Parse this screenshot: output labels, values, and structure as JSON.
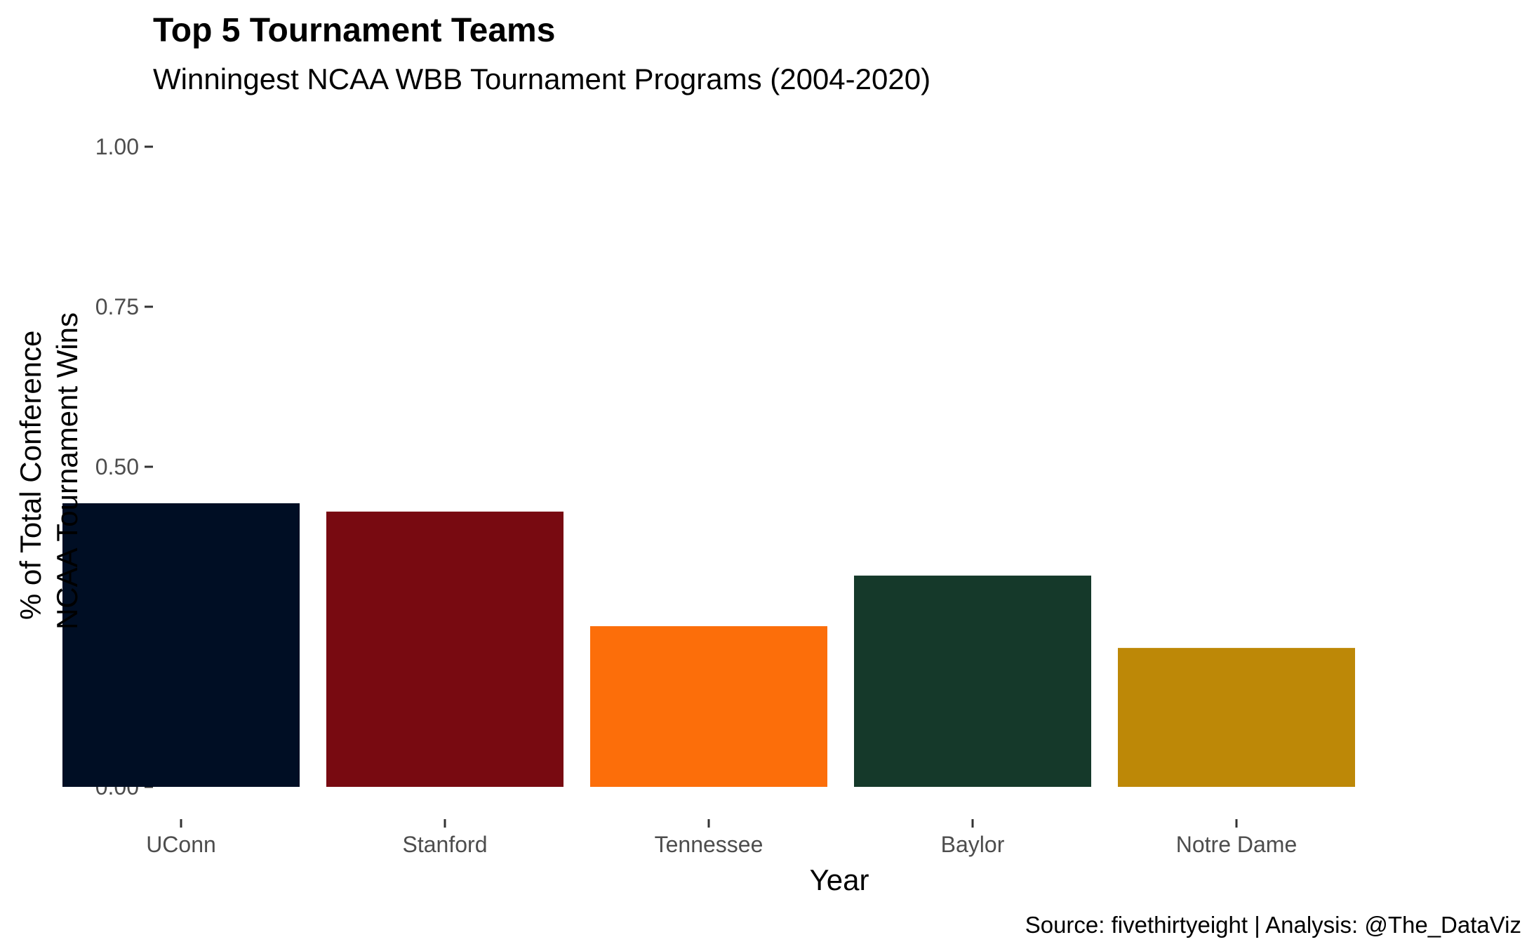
{
  "chart_data": {
    "type": "bar",
    "title": "Top 5 Tournament Teams",
    "subtitle": "Winningest NCAA WBB Tournament Programs (2004-2020)",
    "xlabel": "Year",
    "ylabel_lines": [
      "% of Total Conference",
      "NCAA Tournament Wins"
    ],
    "caption": "Source: fivethirtyeight | Analysis: @The_DataViz",
    "categories": [
      "UConn",
      "Stanford",
      "Tennessee",
      "Baylor",
      "Notre Dame"
    ],
    "values": [
      0.443,
      0.43,
      0.251,
      0.33,
      0.217
    ],
    "colors": [
      "#000E24",
      "#780A11",
      "#FC6E0A",
      "#15392A",
      "#BD8807"
    ],
    "ylim": [
      0,
      1
    ],
    "yticks": [
      0,
      0.25,
      0.5,
      0.75,
      1.0
    ],
    "ytick_labels": [
      "0.00",
      "0.25",
      "0.50",
      "0.75",
      "1.00"
    ],
    "grid": false,
    "legend": "none"
  }
}
